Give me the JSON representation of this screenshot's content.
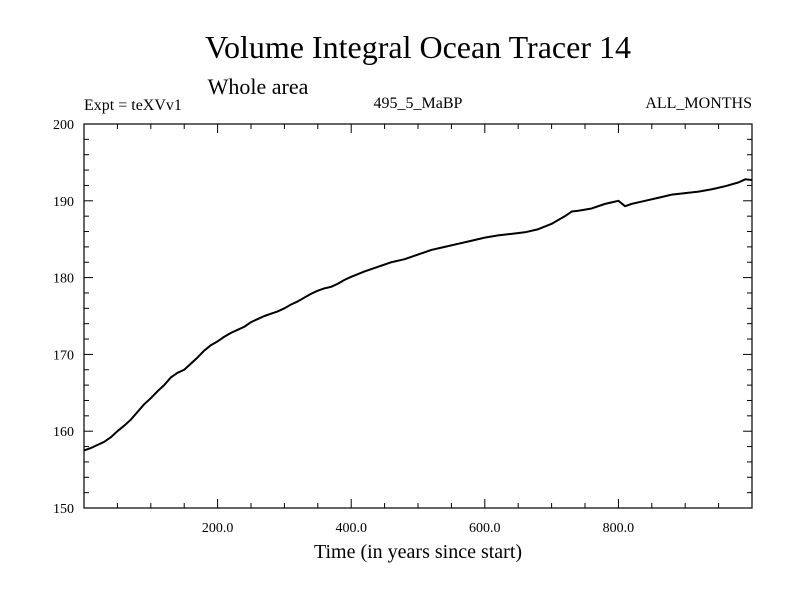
{
  "chart_data": {
    "type": "line",
    "title": "Volume Integral Ocean Tracer 14",
    "subtitle": "Whole area",
    "expt_label": "Expt = teXVv1",
    "center_label": "495_5_MaBP",
    "right_label": "ALL_MONTHS",
    "xlabel": "Time (in years since start)",
    "ylabel": "",
    "xlim": [
      0,
      1000
    ],
    "ylim": [
      150,
      200
    ],
    "x_ticks": [
      200,
      400,
      600,
      800
    ],
    "x_tick_labels": [
      "200.0",
      "400.0",
      "600.0",
      "800.0"
    ],
    "y_ticks": [
      150,
      160,
      170,
      180,
      190,
      200
    ],
    "y_tick_labels": [
      "150",
      "160",
      "170",
      "180",
      "190",
      "200"
    ],
    "grid": false,
    "series": [
      {
        "name": "Volume Integral Ocean Tracer 14",
        "x": [
          0,
          10,
          20,
          30,
          40,
          50,
          60,
          70,
          80,
          90,
          100,
          110,
          120,
          130,
          140,
          150,
          160,
          170,
          180,
          190,
          200,
          210,
          220,
          230,
          240,
          250,
          260,
          270,
          280,
          290,
          300,
          310,
          320,
          330,
          340,
          350,
          360,
          370,
          380,
          390,
          400,
          420,
          440,
          460,
          480,
          500,
          520,
          540,
          560,
          580,
          600,
          620,
          640,
          660,
          680,
          700,
          720,
          730,
          740,
          760,
          780,
          790,
          800,
          810,
          820,
          840,
          860,
          880,
          900,
          920,
          940,
          960,
          980,
          990,
          1000
        ],
        "values": [
          157.5,
          157.8,
          158.2,
          158.6,
          159.2,
          160.0,
          160.7,
          161.5,
          162.5,
          163.5,
          164.3,
          165.2,
          166.0,
          167.0,
          167.6,
          168.0,
          168.8,
          169.6,
          170.5,
          171.2,
          171.7,
          172.3,
          172.8,
          173.2,
          173.6,
          174.2,
          174.6,
          175.0,
          175.3,
          175.6,
          176.0,
          176.5,
          176.9,
          177.4,
          177.9,
          178.3,
          178.6,
          178.8,
          179.2,
          179.7,
          180.1,
          180.8,
          181.4,
          182.0,
          182.4,
          183.0,
          183.6,
          184.0,
          184.4,
          184.8,
          185.2,
          185.5,
          185.7,
          185.9,
          186.3,
          187.0,
          188.0,
          188.6,
          188.7,
          189.0,
          189.6,
          189.8,
          190.0,
          189.3,
          189.6,
          190.0,
          190.4,
          190.8,
          191.0,
          191.2,
          191.5,
          191.9,
          192.4,
          192.8,
          192.7
        ]
      }
    ]
  }
}
